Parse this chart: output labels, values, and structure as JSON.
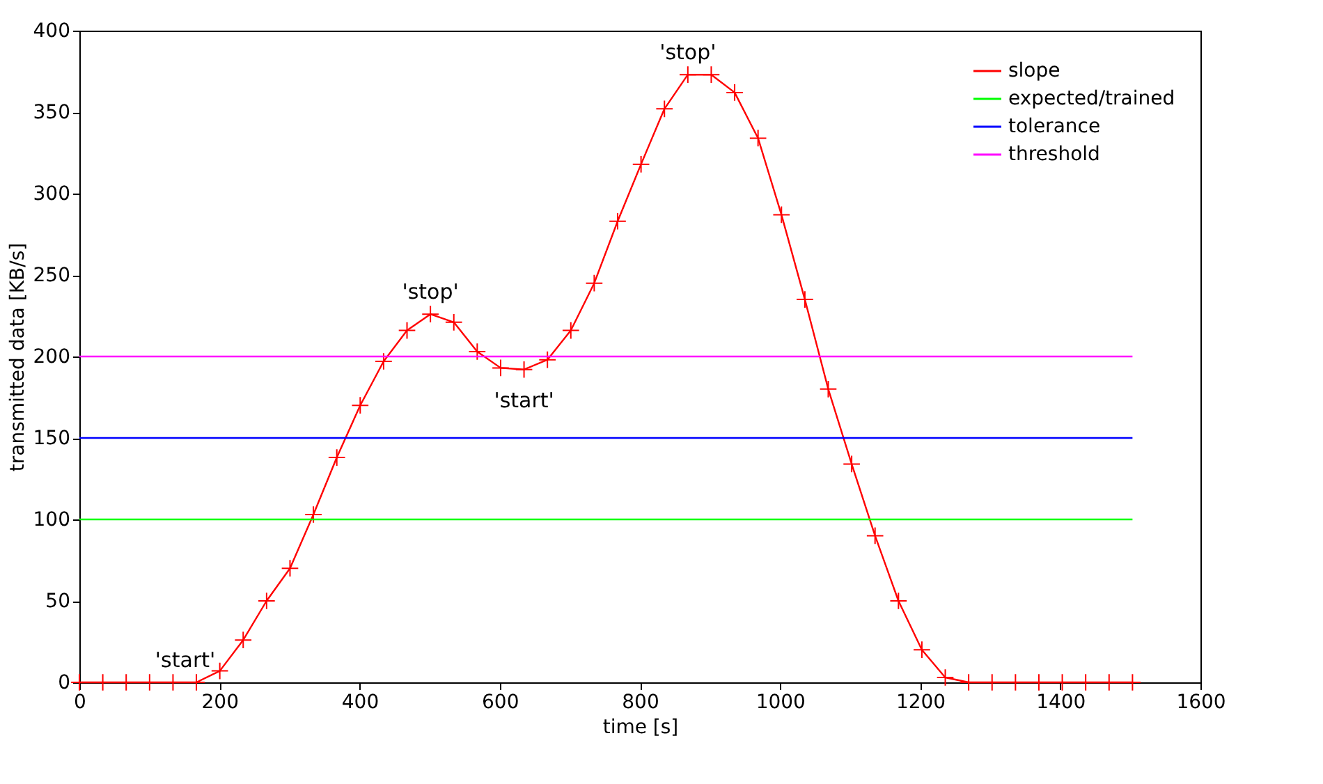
{
  "chart_data": {
    "type": "line",
    "xlabel": "time [s]",
    "ylabel": "transmitted data [KB/s]",
    "xlim": [
      0,
      1600
    ],
    "xticks": [
      0,
      200,
      400,
      600,
      800,
      1000,
      1200,
      1400,
      1600
    ],
    "line_style": "solid",
    "ylim": [
      0,
      400
    ],
    "yticks": [
      0,
      50,
      100,
      150,
      200,
      250,
      300,
      350,
      400
    ],
    "grid": false,
    "legend": "top right",
    "series": [
      {
        "name": "slope",
        "color": "#ff0000",
        "marker": "cross",
        "x": [
          0,
          33.4,
          66.8,
          100.2,
          133.6,
          167,
          200.4,
          233.8,
          267.2,
          300.6,
          334,
          367.4,
          400.8,
          434.2,
          467.6,
          501,
          534.4,
          567.8,
          601.2,
          634.6,
          668,
          701.4,
          734.8,
          768.2,
          801.6,
          835,
          868.4,
          901.8,
          935.2,
          968.6,
          1002,
          1035.4,
          1068.8,
          1102.2,
          1135.6,
          1169,
          1202.4,
          1235.8,
          1269.2,
          1302.6,
          1336,
          1369.4,
          1402.8,
          1436.2,
          1469.6,
          1503
        ],
        "values": [
          0,
          0,
          0,
          0,
          0,
          0,
          7,
          26,
          50,
          70,
          103,
          138,
          170,
          197,
          216,
          226,
          221,
          203,
          193,
          192,
          198,
          216,
          245,
          283,
          318,
          352,
          373,
          373,
          362,
          334,
          287,
          235,
          180,
          134,
          90,
          50,
          20,
          3,
          0,
          0,
          0,
          0,
          0,
          0,
          0,
          0
        ]
      },
      {
        "name": "expected/trained",
        "color": "#00ff00",
        "marker": "none",
        "x": [
          0,
          1503
        ],
        "values": [
          100,
          100
        ]
      },
      {
        "name": "tolerance",
        "color": "#0000ff",
        "marker": "none",
        "x": [
          0,
          1503
        ],
        "values": [
          150,
          150
        ]
      },
      {
        "name": "threshold",
        "color": "#ff00ff",
        "marker": "none",
        "x": [
          0,
          1503
        ],
        "values": [
          200,
          200
        ]
      }
    ],
    "annotations": [
      {
        "text": "'start'",
        "x": 167,
        "y": 0
      },
      {
        "text": "'stop'",
        "x": 501,
        "y": 226
      },
      {
        "text": "'start'",
        "x": 634.6,
        "y": 192
      },
      {
        "text": "'stop'",
        "x": 868.4,
        "y": 373
      }
    ]
  }
}
